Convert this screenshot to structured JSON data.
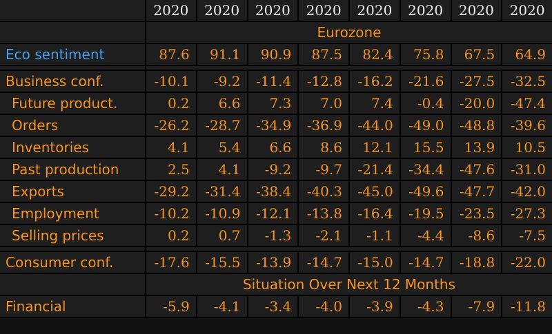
{
  "app": {
    "name": "terminal-economic-data-table",
    "region_header": "Eurozone"
  },
  "colors": {
    "background": "#121212",
    "cell_background": "#1e1e1e",
    "gridline": "#000000",
    "value_orange": "#f49320",
    "label_blue": "#4a9fe8",
    "header_white": "#ededed"
  },
  "table": {
    "year_headers": [
      "2020",
      "2020",
      "2020",
      "2020",
      "2020",
      "2020",
      "2020",
      "2020"
    ],
    "rows": [
      {
        "type": "section",
        "label": "Eurozone"
      },
      {
        "type": "data",
        "label": "Eco sentiment",
        "indent": 0,
        "label_color": "blue",
        "values": [
          "87.6",
          "91.1",
          "90.9",
          "87.5",
          "82.4",
          "75.8",
          "67.5",
          "64.9"
        ]
      },
      {
        "type": "spacer"
      },
      {
        "type": "data",
        "label": "Business conf.",
        "indent": 0,
        "values": [
          "-10.1",
          "-9.2",
          "-11.4",
          "-12.8",
          "-16.2",
          "-21.6",
          "-27.5",
          "-32.5"
        ]
      },
      {
        "type": "data",
        "label": "Future product.",
        "indent": 1,
        "values": [
          "0.2",
          "6.6",
          "7.3",
          "7.0",
          "7.4",
          "-0.4",
          "-20.0",
          "-47.4"
        ]
      },
      {
        "type": "data",
        "label": "Orders",
        "indent": 1,
        "values": [
          "-26.2",
          "-28.7",
          "-34.9",
          "-36.9",
          "-44.0",
          "-49.0",
          "-48.8",
          "-39.6"
        ]
      },
      {
        "type": "data",
        "label": "Inventories",
        "indent": 1,
        "values": [
          "4.1",
          "5.4",
          "6.6",
          "8.6",
          "12.1",
          "15.5",
          "13.9",
          "10.5"
        ]
      },
      {
        "type": "data",
        "label": "Past production",
        "indent": 1,
        "values": [
          "2.5",
          "4.1",
          "-9.2",
          "-9.7",
          "-21.4",
          "-34.4",
          "-47.6",
          "-31.0"
        ]
      },
      {
        "type": "data",
        "label": "Exports",
        "indent": 1,
        "values": [
          "-29.2",
          "-31.4",
          "-38.4",
          "-40.3",
          "-45.0",
          "-49.6",
          "-47.7",
          "-42.0"
        ]
      },
      {
        "type": "data",
        "label": "Employment",
        "indent": 1,
        "values": [
          "-10.2",
          "-10.9",
          "-12.1",
          "-13.8",
          "-16.4",
          "-19.5",
          "-23.5",
          "-27.3"
        ]
      },
      {
        "type": "data",
        "label": "Selling prices",
        "indent": 1,
        "values": [
          "0.2",
          "0.7",
          "-1.3",
          "-2.1",
          "-1.1",
          "-4.4",
          "-8.6",
          "-7.5"
        ]
      },
      {
        "type": "spacer"
      },
      {
        "type": "data",
        "label": "Consumer conf.",
        "indent": 0,
        "values": [
          "-17.6",
          "-15.5",
          "-13.9",
          "-14.7",
          "-15.0",
          "-14.7",
          "-18.8",
          "-22.0"
        ]
      },
      {
        "type": "section",
        "label": "Situation Over Next 12 Months"
      },
      {
        "type": "data",
        "label": "Financial",
        "indent": 0,
        "values": [
          "-5.9",
          "-4.1",
          "-3.4",
          "-4.0",
          "-3.9",
          "-4.3",
          "-7.9",
          "-11.8"
        ]
      }
    ]
  }
}
